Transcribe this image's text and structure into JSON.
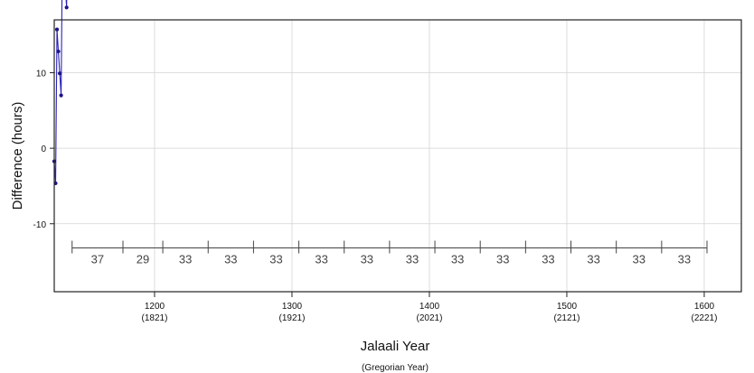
{
  "chart_data": {
    "type": "line",
    "title": "",
    "xlabel": "Jalaali Year",
    "xlabel_sub": "(Gregorian Year)",
    "ylabel": "Difference (hours)",
    "xlim": [
      1127,
      1627
    ],
    "ylim": [
      -19,
      17
    ],
    "grid": true,
    "x_ticks": [
      {
        "value": 1200,
        "label": "1200",
        "sublabel": "(1821)"
      },
      {
        "value": 1300,
        "label": "1300",
        "sublabel": "(1921)"
      },
      {
        "value": 1400,
        "label": "1400",
        "sublabel": "(2021)"
      },
      {
        "value": 1500,
        "label": "1500",
        "sublabel": "(2121)"
      },
      {
        "value": 1600,
        "label": "1600",
        "sublabel": "(2221)"
      }
    ],
    "y_ticks": [
      {
        "value": 10,
        "label": "10"
      },
      {
        "value": 0,
        "label": "0"
      },
      {
        "value": -10,
        "label": "-10"
      }
    ],
    "cycle_bracket": {
      "y": -13.2,
      "boundaries": [
        1140,
        1177,
        1206,
        1239,
        1272,
        1305,
        1338,
        1371,
        1404,
        1437,
        1470,
        1503,
        1536,
        1569,
        1602
      ],
      "labels": [
        "37",
        "29",
        "33",
        "33",
        "33",
        "33",
        "33",
        "33",
        "33",
        "33",
        "33",
        "33",
        "33",
        "33"
      ]
    },
    "series": [
      {
        "color": "#2b22b8",
        "marker_color": "#1b1488",
        "x_start": 1127,
        "x_end": 1627,
        "step_per_year": -2.91,
        "leap_jump": 23.28,
        "leap_years": [
          1128,
          1132,
          1136,
          1140,
          1145,
          1149,
          1153,
          1157,
          1161,
          1165,
          1169,
          1173,
          1177,
          1182,
          1186,
          1190,
          1194,
          1198,
          1202,
          1206,
          1211,
          1215,
          1219,
          1223,
          1227,
          1231,
          1235,
          1239,
          1244,
          1248,
          1252,
          1256,
          1260,
          1264,
          1268,
          1272,
          1277,
          1281,
          1285,
          1289,
          1293,
          1297,
          1301,
          1305,
          1310,
          1314,
          1318,
          1322,
          1326,
          1330,
          1334,
          1338,
          1343,
          1347,
          1351,
          1355,
          1359,
          1363,
          1367,
          1371,
          1376,
          1380,
          1384,
          1388,
          1392,
          1396,
          1400,
          1404,
          1409,
          1413,
          1417,
          1421,
          1425,
          1429,
          1433,
          1437,
          1442,
          1446,
          1450,
          1454,
          1458,
          1462,
          1466,
          1470,
          1475,
          1479,
          1483,
          1487,
          1491,
          1495,
          1499,
          1503,
          1508,
          1512,
          1516,
          1520,
          1524,
          1528,
          1532,
          1536,
          1541,
          1545,
          1549,
          1553,
          1557,
          1561,
          1565,
          1569,
          1574,
          1578,
          1582,
          1586,
          1590,
          1594,
          1598,
          1602,
          1607,
          1611,
          1615,
          1619,
          1623
        ],
        "anchor": {
          "x": 1132,
          "y": 7.0
        }
      }
    ]
  }
}
